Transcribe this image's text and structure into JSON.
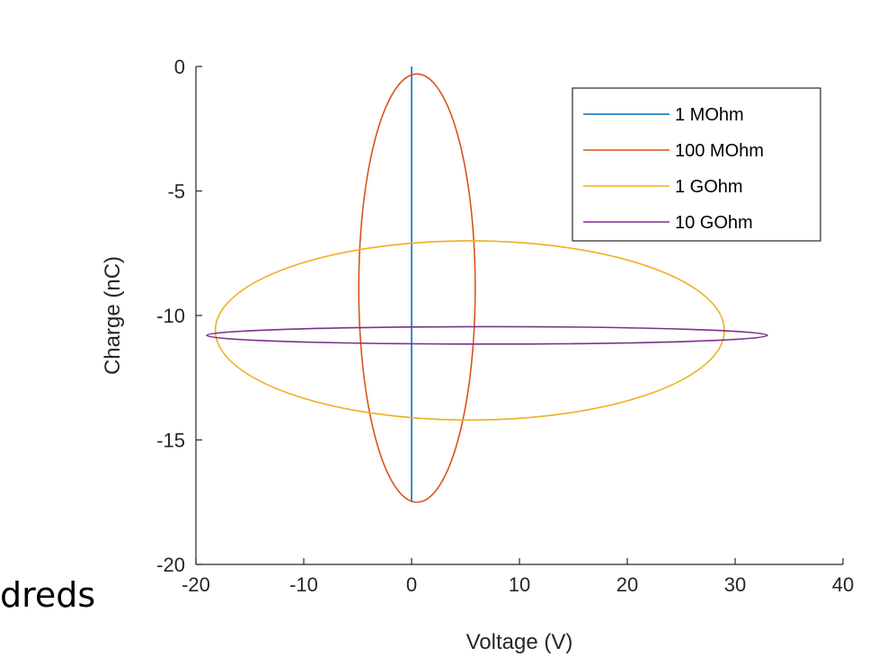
{
  "slide": {
    "fragment_text": "dreds"
  },
  "chart_data": {
    "type": "line",
    "title": "",
    "xlabel": "Voltage (V)",
    "ylabel": "Charge (nC)",
    "xlim": [
      -20,
      40
    ],
    "ylim": [
      -20,
      0
    ],
    "xticks": [
      -20,
      -10,
      0,
      10,
      20,
      30,
      40
    ],
    "yticks": [
      0,
      -5,
      -10,
      -15,
      -20
    ],
    "grid": false,
    "legend_position": "top-right",
    "series": [
      {
        "name": "1 MOhm",
        "color": "#0072bd",
        "shape": "line",
        "points": [
          [
            0,
            0
          ],
          [
            0,
            -17.5
          ]
        ]
      },
      {
        "name": "100 MOhm",
        "color": "#d95319",
        "shape": "ellipse",
        "center": [
          0.5,
          -8.9
        ],
        "x_radius": 5.4,
        "y_radius": 8.6
      },
      {
        "name": "1 GOhm",
        "color": "#edb120",
        "shape": "ellipse",
        "center": [
          5.4,
          -10.6
        ],
        "x_radius": 23.6,
        "y_radius": 3.6
      },
      {
        "name": "10 GOhm",
        "color": "#7e2f8e",
        "shape": "ellipse",
        "center": [
          7.0,
          -10.8
        ],
        "x_radius": 26.0,
        "y_radius": 0.35
      }
    ]
  }
}
